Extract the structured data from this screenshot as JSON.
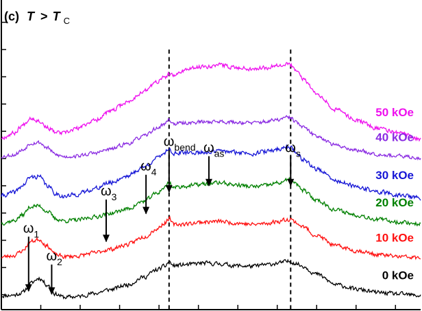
{
  "chart_data": {
    "type": "line",
    "panel_label": "(c)",
    "title_main": "T",
    "title_op": ">",
    "title_sub_main": "T",
    "title_sub": "C",
    "xlabel": "",
    "ylabel": "",
    "xlim": [
      0,
      100
    ],
    "ylim": [
      0,
      100
    ],
    "grid": false,
    "x_ticks": [
      0,
      9.4,
      18.8,
      28.2,
      37.6,
      47.0,
      56.4,
      65.8,
      75.2,
      84.6,
      94.0
    ],
    "y_ticks": [
      4.8,
      13.6,
      22.4,
      31.2,
      40.0,
      48.8,
      57.6,
      66.4,
      75.2,
      84.0,
      92.8
    ],
    "series": [
      {
        "name": "0 kOe",
        "color": "#000000",
        "offset": 4.0,
        "scale": 1.0,
        "noise": 0.6,
        "seed": 11,
        "x": [
          0,
          3,
          5,
          7,
          9,
          11,
          13,
          15,
          18,
          22,
          26,
          30,
          34,
          37,
          39,
          40,
          41,
          44,
          48,
          52,
          56,
          60,
          63,
          66,
          68,
          69,
          70,
          72,
          75,
          80,
          85,
          90,
          95,
          100
        ],
        "y": [
          0.5,
          0.7,
          1.5,
          4.5,
          6.2,
          4.0,
          1.0,
          0.0,
          0.2,
          1.2,
          2.5,
          4.0,
          6.5,
          8.8,
          10.0,
          11.5,
          10.2,
          10.5,
          11.0,
          10.8,
          10.2,
          10.0,
          10.5,
          11.0,
          11.5,
          11.6,
          11.0,
          10.0,
          7.5,
          4.0,
          2.5,
          1.5,
          1.0,
          0.5
        ]
      },
      {
        "name": "10 kOe",
        "color": "#ff1010",
        "offset": 16.5,
        "scale": 1.0,
        "noise": 0.6,
        "seed": 23,
        "x": [
          0,
          3,
          5,
          7,
          9,
          11,
          13,
          15,
          18,
          22,
          26,
          30,
          34,
          37,
          39,
          40,
          41,
          44,
          48,
          52,
          56,
          60,
          63,
          66,
          68,
          69,
          70,
          72,
          75,
          80,
          85,
          90,
          95,
          100
        ],
        "y": [
          0.5,
          1.0,
          2.5,
          5.5,
          6.2,
          4.0,
          1.2,
          0.6,
          0.8,
          1.8,
          3.0,
          4.5,
          7.0,
          9.5,
          11.5,
          13.0,
          11.0,
          11.2,
          11.8,
          12.0,
          11.5,
          11.0,
          11.3,
          12.0,
          12.6,
          12.8,
          11.8,
          10.2,
          7.5,
          4.0,
          2.5,
          1.2,
          0.6,
          0.2
        ]
      },
      {
        "name": "20 kOe",
        "color": "#008000",
        "offset": 27.5,
        "scale": 1.0,
        "noise": 0.6,
        "seed": 37,
        "x": [
          0,
          3,
          5,
          7,
          9,
          11,
          13,
          15,
          18,
          22,
          26,
          30,
          34,
          37,
          39,
          40,
          41,
          44,
          48,
          52,
          56,
          60,
          63,
          66,
          68,
          69,
          70,
          72,
          75,
          80,
          85,
          90,
          95,
          100
        ],
        "y": [
          0.5,
          1.2,
          3.0,
          5.8,
          6.0,
          4.2,
          1.8,
          1.2,
          1.4,
          2.4,
          3.6,
          5.0,
          7.5,
          10.0,
          12.0,
          13.8,
          12.0,
          12.4,
          13.0,
          13.5,
          12.8,
          12.2,
          12.6,
          13.4,
          14.2,
          14.4,
          13.2,
          11.0,
          8.0,
          4.6,
          3.0,
          1.6,
          0.8,
          0.2
        ]
      },
      {
        "name": "30 kOe",
        "color": "#1515d6",
        "offset": 36.0,
        "scale": 1.0,
        "noise": 0.65,
        "seed": 41,
        "x": [
          0,
          3,
          5,
          7,
          9,
          11,
          13,
          15,
          18,
          22,
          26,
          30,
          34,
          37,
          39,
          40,
          41,
          44,
          48,
          52,
          56,
          60,
          63,
          66,
          68,
          69,
          70,
          72,
          75,
          80,
          85,
          90,
          95,
          100
        ],
        "y": [
          0.8,
          1.8,
          4.0,
          6.8,
          7.0,
          4.0,
          1.5,
          0.5,
          1.2,
          3.0,
          5.0,
          7.2,
          10.0,
          12.8,
          14.8,
          16.0,
          14.5,
          14.6,
          14.8,
          15.2,
          14.8,
          14.5,
          15.0,
          15.8,
          16.6,
          16.5,
          15.0,
          12.6,
          9.5,
          5.5,
          3.5,
          2.0,
          1.0,
          0.0
        ]
      },
      {
        "name": "40 kOe",
        "color": "#8a2be2",
        "offset": 49.0,
        "scale": 1.0,
        "noise": 0.55,
        "seed": 53,
        "x": [
          0,
          3,
          5,
          7,
          9,
          11,
          13,
          15,
          18,
          22,
          26,
          30,
          34,
          37,
          39,
          40,
          41,
          44,
          48,
          52,
          56,
          60,
          63,
          66,
          68,
          69,
          70,
          72,
          75,
          80,
          85,
          90,
          95,
          100
        ],
        "y": [
          0.5,
          1.0,
          2.5,
          4.8,
          5.0,
          3.2,
          1.0,
          0.4,
          0.6,
          1.5,
          2.8,
          4.6,
          7.0,
          9.5,
          11.0,
          12.5,
          11.0,
          11.3,
          11.6,
          11.8,
          11.5,
          11.3,
          11.7,
          12.3,
          13.0,
          13.0,
          11.8,
          9.8,
          7.2,
          4.0,
          2.4,
          1.2,
          0.5,
          0.0
        ]
      },
      {
        "name": "50 kOe",
        "color": "#ee10ee",
        "offset": 55.0,
        "scale": 1.0,
        "noise": 0.6,
        "seed": 67,
        "x": [
          0,
          3,
          5,
          7,
          9,
          11,
          13,
          15,
          18,
          22,
          26,
          30,
          34,
          37,
          39,
          40,
          41,
          44,
          48,
          52,
          56,
          60,
          63,
          66,
          68,
          69,
          70,
          72,
          75,
          80,
          85,
          90,
          95,
          100
        ],
        "y": [
          0.5,
          2.0,
          4.5,
          7.0,
          6.0,
          3.8,
          2.2,
          2.0,
          3.5,
          6.0,
          9.0,
          12.0,
          15.5,
          18.5,
          20.0,
          21.0,
          20.5,
          22.5,
          23.5,
          24.0,
          23.2,
          22.8,
          23.2,
          24.0,
          24.5,
          24.0,
          22.5,
          19.5,
          15.0,
          9.5,
          6.0,
          3.5,
          2.0,
          0.0
        ]
      }
    ],
    "dashed_lines_x": [
      40,
      69
    ],
    "annotations": [
      {
        "main": "ω",
        "sub": "1",
        "x": 6.5,
        "arrow_from": 24,
        "arrow_to": 6
      },
      {
        "main": "ω",
        "sub": "2",
        "x": 12,
        "arrow_from": 15,
        "arrow_to": 5
      },
      {
        "main": "ω",
        "sub": "3",
        "x": 25,
        "arrow_from": 36,
        "arrow_to": 22
      },
      {
        "main": "ω",
        "sub": "4",
        "x": 34.5,
        "arrow_from": 44,
        "arrow_to": 31
      },
      {
        "main": "ω",
        "sub": "bend",
        "x": 40,
        "arrow_from": 52,
        "arrow_to": 38
      },
      {
        "main": "ω",
        "sub": "as",
        "x": 49.5,
        "arrow_from": 50,
        "arrow_to": 40
      },
      {
        "main": "ω",
        "sub": "s",
        "x": 69,
        "arrow_from": 50,
        "arrow_to": 40
      }
    ]
  }
}
